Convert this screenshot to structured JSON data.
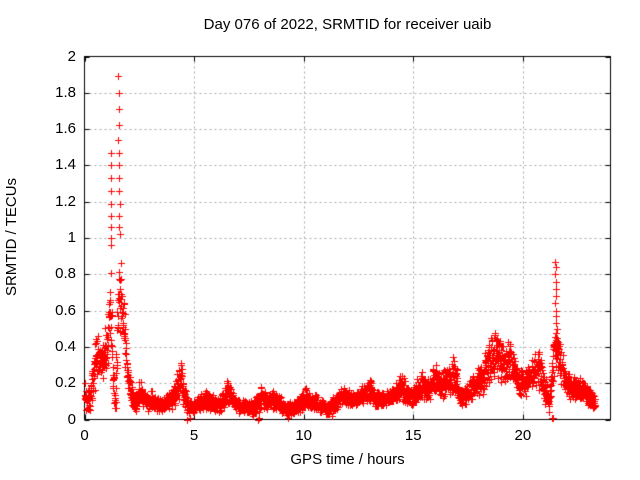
{
  "chart_data": {
    "type": "scatter",
    "title": "Day 076 of 2022, SRMTID for receiver uaib",
    "xlabel": "GPS time / hours",
    "ylabel": "SRMTID / TECUs",
    "xlim": [
      0,
      24
    ],
    "ylim": [
      0,
      2
    ],
    "xticks": [
      0,
      5,
      10,
      15,
      20
    ],
    "yticks": [
      0,
      0.2,
      0.4,
      0.6,
      0.8,
      1,
      1.2,
      1.4,
      1.6,
      1.8,
      2
    ],
    "grid": true,
    "legend": "none",
    "marker": "plus",
    "series_color": "#ff0000",
    "grid_color": "#a8a8a8",
    "border_color": "#000000",
    "background": "#ffffff",
    "band_density_per_hour": 120,
    "band_note": "dense 30s-cadence scatter band; anchors are [hour, low, high] envelope of the red point cloud",
    "band_anchors": [
      [
        0.0,
        0.05,
        0.22
      ],
      [
        0.15,
        0.03,
        0.17
      ],
      [
        0.3,
        0.06,
        0.24
      ],
      [
        0.45,
        0.12,
        0.4
      ],
      [
        0.6,
        0.22,
        0.53
      ],
      [
        0.72,
        0.18,
        0.44
      ],
      [
        0.85,
        0.22,
        0.46
      ],
      [
        1.0,
        0.28,
        0.58
      ],
      [
        1.1,
        0.3,
        0.72
      ],
      [
        1.2,
        0.32,
        0.95
      ],
      [
        1.3,
        0.05,
        0.4
      ],
      [
        1.42,
        0.03,
        0.12
      ],
      [
        1.52,
        0.3,
        0.95
      ],
      [
        1.62,
        0.38,
        1.0
      ],
      [
        1.7,
        0.4,
        0.78
      ],
      [
        1.8,
        0.35,
        0.72
      ],
      [
        1.9,
        0.18,
        0.48
      ],
      [
        2.0,
        0.12,
        0.35
      ],
      [
        2.15,
        0.06,
        0.2
      ],
      [
        2.35,
        0.04,
        0.14
      ],
      [
        2.55,
        0.07,
        0.26
      ],
      [
        2.7,
        0.05,
        0.18
      ],
      [
        2.9,
        0.04,
        0.15
      ],
      [
        3.1,
        0.05,
        0.17
      ],
      [
        3.3,
        0.03,
        0.13
      ],
      [
        3.55,
        0.03,
        0.12
      ],
      [
        3.8,
        0.04,
        0.14
      ],
      [
        4.0,
        0.05,
        0.17
      ],
      [
        4.2,
        0.07,
        0.24
      ],
      [
        4.4,
        0.1,
        0.35
      ],
      [
        4.55,
        0.05,
        0.22
      ],
      [
        4.75,
        0.01,
        0.1
      ],
      [
        5.0,
        0.03,
        0.12
      ],
      [
        5.25,
        0.04,
        0.14
      ],
      [
        5.5,
        0.05,
        0.17
      ],
      [
        5.75,
        0.05,
        0.16
      ],
      [
        6.0,
        0.03,
        0.12
      ],
      [
        6.25,
        0.04,
        0.14
      ],
      [
        6.5,
        0.07,
        0.24
      ],
      [
        6.65,
        0.06,
        0.2
      ],
      [
        6.85,
        0.04,
        0.14
      ],
      [
        7.1,
        0.03,
        0.12
      ],
      [
        7.4,
        0.03,
        0.11
      ],
      [
        7.7,
        0.02,
        0.12
      ],
      [
        7.9,
        0.01,
        0.14
      ],
      [
        8.1,
        0.05,
        0.2
      ],
      [
        8.3,
        0.04,
        0.15
      ],
      [
        8.6,
        0.05,
        0.17
      ],
      [
        8.9,
        0.04,
        0.14
      ],
      [
        9.2,
        0.02,
        0.1
      ],
      [
        9.5,
        0.03,
        0.1
      ],
      [
        9.8,
        0.03,
        0.12
      ],
      [
        10.1,
        0.05,
        0.19
      ],
      [
        10.35,
        0.04,
        0.15
      ],
      [
        10.6,
        0.04,
        0.14
      ],
      [
        10.85,
        0.03,
        0.11
      ],
      [
        11.1,
        0.01,
        0.09
      ],
      [
        11.35,
        0.04,
        0.13
      ],
      [
        11.6,
        0.06,
        0.16
      ],
      [
        11.9,
        0.07,
        0.19
      ],
      [
        12.2,
        0.05,
        0.15
      ],
      [
        12.5,
        0.07,
        0.17
      ],
      [
        12.8,
        0.08,
        0.21
      ],
      [
        13.05,
        0.09,
        0.24
      ],
      [
        13.3,
        0.06,
        0.16
      ],
      [
        13.6,
        0.06,
        0.16
      ],
      [
        13.9,
        0.07,
        0.18
      ],
      [
        14.2,
        0.08,
        0.21
      ],
      [
        14.5,
        0.09,
        0.26
      ],
      [
        14.8,
        0.07,
        0.18
      ],
      [
        15.1,
        0.08,
        0.21
      ],
      [
        15.4,
        0.1,
        0.3
      ],
      [
        15.7,
        0.09,
        0.24
      ],
      [
        16.0,
        0.12,
        0.33
      ],
      [
        16.3,
        0.1,
        0.27
      ],
      [
        16.6,
        0.12,
        0.32
      ],
      [
        16.9,
        0.14,
        0.37
      ],
      [
        17.15,
        0.06,
        0.18
      ],
      [
        17.45,
        0.08,
        0.22
      ],
      [
        17.75,
        0.1,
        0.26
      ],
      [
        18.05,
        0.12,
        0.31
      ],
      [
        18.35,
        0.15,
        0.4
      ],
      [
        18.65,
        0.2,
        0.55
      ],
      [
        18.9,
        0.2,
        0.5
      ],
      [
        19.15,
        0.17,
        0.4
      ],
      [
        19.4,
        0.2,
        0.48
      ],
      [
        19.65,
        0.14,
        0.34
      ],
      [
        19.9,
        0.1,
        0.28
      ],
      [
        20.15,
        0.12,
        0.3
      ],
      [
        20.45,
        0.15,
        0.34
      ],
      [
        20.7,
        0.17,
        0.42
      ],
      [
        20.95,
        0.08,
        0.28
      ],
      [
        21.2,
        0.03,
        0.15
      ],
      [
        21.45,
        0.28,
        0.55
      ],
      [
        21.6,
        0.25,
        0.48
      ],
      [
        21.8,
        0.16,
        0.38
      ],
      [
        22.0,
        0.12,
        0.28
      ],
      [
        22.25,
        0.1,
        0.24
      ],
      [
        22.5,
        0.1,
        0.25
      ],
      [
        22.8,
        0.09,
        0.21
      ],
      [
        23.05,
        0.06,
        0.17
      ],
      [
        23.3,
        0.05,
        0.13
      ]
    ],
    "outlier_points": [
      [
        0.0,
        0.2
      ],
      [
        1.19,
        1.47
      ],
      [
        1.21,
        1.4
      ],
      [
        1.2,
        1.33
      ],
      [
        1.22,
        1.26
      ],
      [
        1.19,
        1.19
      ],
      [
        1.21,
        1.12
      ],
      [
        1.2,
        1.06
      ],
      [
        1.22,
        1.0
      ],
      [
        1.23,
        0.96
      ],
      [
        1.55,
        1.89
      ],
      [
        1.57,
        1.8
      ],
      [
        1.56,
        1.71
      ],
      [
        1.58,
        1.62
      ],
      [
        1.55,
        1.54
      ],
      [
        1.57,
        1.47
      ],
      [
        1.59,
        1.4
      ],
      [
        1.56,
        1.33
      ],
      [
        1.58,
        1.26
      ],
      [
        1.6,
        1.19
      ],
      [
        1.57,
        1.12
      ],
      [
        1.59,
        1.06
      ],
      [
        1.61,
        1.02
      ],
      [
        21.48,
        0.87
      ],
      [
        21.5,
        0.84
      ],
      [
        21.49,
        0.8
      ],
      [
        21.51,
        0.76
      ],
      [
        21.5,
        0.72
      ],
      [
        21.52,
        0.68
      ],
      [
        21.49,
        0.64
      ],
      [
        21.51,
        0.6
      ],
      [
        21.53,
        0.57
      ],
      [
        21.5,
        0.53
      ],
      [
        21.54,
        0.5
      ],
      [
        21.33,
        0.01
      ],
      [
        21.37,
        0.01
      ],
      [
        7.9,
        0.0
      ],
      [
        7.94,
        0.01
      ],
      [
        4.66,
        0.0
      ],
      [
        4.8,
        0.01
      ],
      [
        11.3,
        0.02
      ],
      [
        9.3,
        0.01
      ]
    ]
  }
}
